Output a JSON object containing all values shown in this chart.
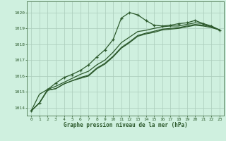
{
  "title": "Graphe pression niveau de la mer (hPa)",
  "bg_color": "#cff0df",
  "grid_color": "#aaccbb",
  "line_color": "#2d5a2d",
  "xlim": [
    -0.5,
    23.5
  ],
  "ylim": [
    1013.5,
    1020.7
  ],
  "yticks": [
    1014,
    1015,
    1016,
    1017,
    1018,
    1019,
    1020
  ],
  "xticks": [
    0,
    1,
    2,
    3,
    4,
    5,
    6,
    7,
    8,
    9,
    10,
    11,
    12,
    13,
    14,
    15,
    16,
    17,
    18,
    19,
    20,
    21,
    22,
    23
  ],
  "series_main_x": [
    0,
    1,
    2,
    3,
    4,
    5,
    6,
    7,
    8,
    9,
    10,
    11,
    12,
    13,
    14,
    15,
    16,
    17,
    18,
    19,
    20,
    21,
    22,
    23
  ],
  "series_main_y": [
    1013.8,
    1014.3,
    1015.15,
    1015.55,
    1015.9,
    1016.1,
    1016.35,
    1016.7,
    1017.2,
    1017.65,
    1018.3,
    1019.65,
    1020.0,
    1019.85,
    1019.5,
    1019.2,
    1019.15,
    1019.2,
    1019.3,
    1019.35,
    1019.5,
    1019.3,
    1019.15,
    1018.9
  ],
  "series1_x": [
    0,
    1,
    2,
    3,
    4,
    5,
    6,
    7,
    8,
    9,
    10,
    11,
    12,
    13,
    14,
    15,
    16,
    17,
    18,
    19,
    20,
    21,
    22,
    23
  ],
  "series1_y": [
    1013.8,
    1014.3,
    1015.1,
    1015.2,
    1015.5,
    1015.7,
    1015.85,
    1016.0,
    1016.45,
    1016.75,
    1017.2,
    1017.75,
    1018.1,
    1018.5,
    1018.65,
    1018.75,
    1018.9,
    1018.95,
    1019.0,
    1019.1,
    1019.2,
    1019.15,
    1019.05,
    1018.9
  ],
  "series2_x": [
    0,
    1,
    2,
    3,
    4,
    5,
    6,
    7,
    8,
    9,
    10,
    11,
    12,
    13,
    14,
    15,
    16,
    17,
    18,
    19,
    20,
    21,
    22,
    23
  ],
  "series2_y": [
    1013.8,
    1014.3,
    1015.1,
    1015.2,
    1015.5,
    1015.7,
    1015.9,
    1016.05,
    1016.5,
    1016.8,
    1017.25,
    1017.8,
    1018.15,
    1018.55,
    1018.7,
    1018.82,
    1018.95,
    1019.0,
    1019.05,
    1019.15,
    1019.25,
    1019.2,
    1019.1,
    1018.9
  ],
  "series3_x": [
    0,
    1,
    2,
    3,
    4,
    5,
    6,
    7,
    8,
    9,
    10,
    11,
    12,
    13,
    14,
    15,
    16,
    17,
    18,
    19,
    20,
    21,
    22,
    23
  ],
  "series3_y": [
    1013.8,
    1014.85,
    1015.15,
    1015.35,
    1015.6,
    1015.85,
    1016.1,
    1016.3,
    1016.7,
    1017.0,
    1017.5,
    1018.1,
    1018.45,
    1018.8,
    1018.88,
    1019.0,
    1019.1,
    1019.15,
    1019.15,
    1019.25,
    1019.35,
    1019.3,
    1019.1,
    1018.9
  ]
}
